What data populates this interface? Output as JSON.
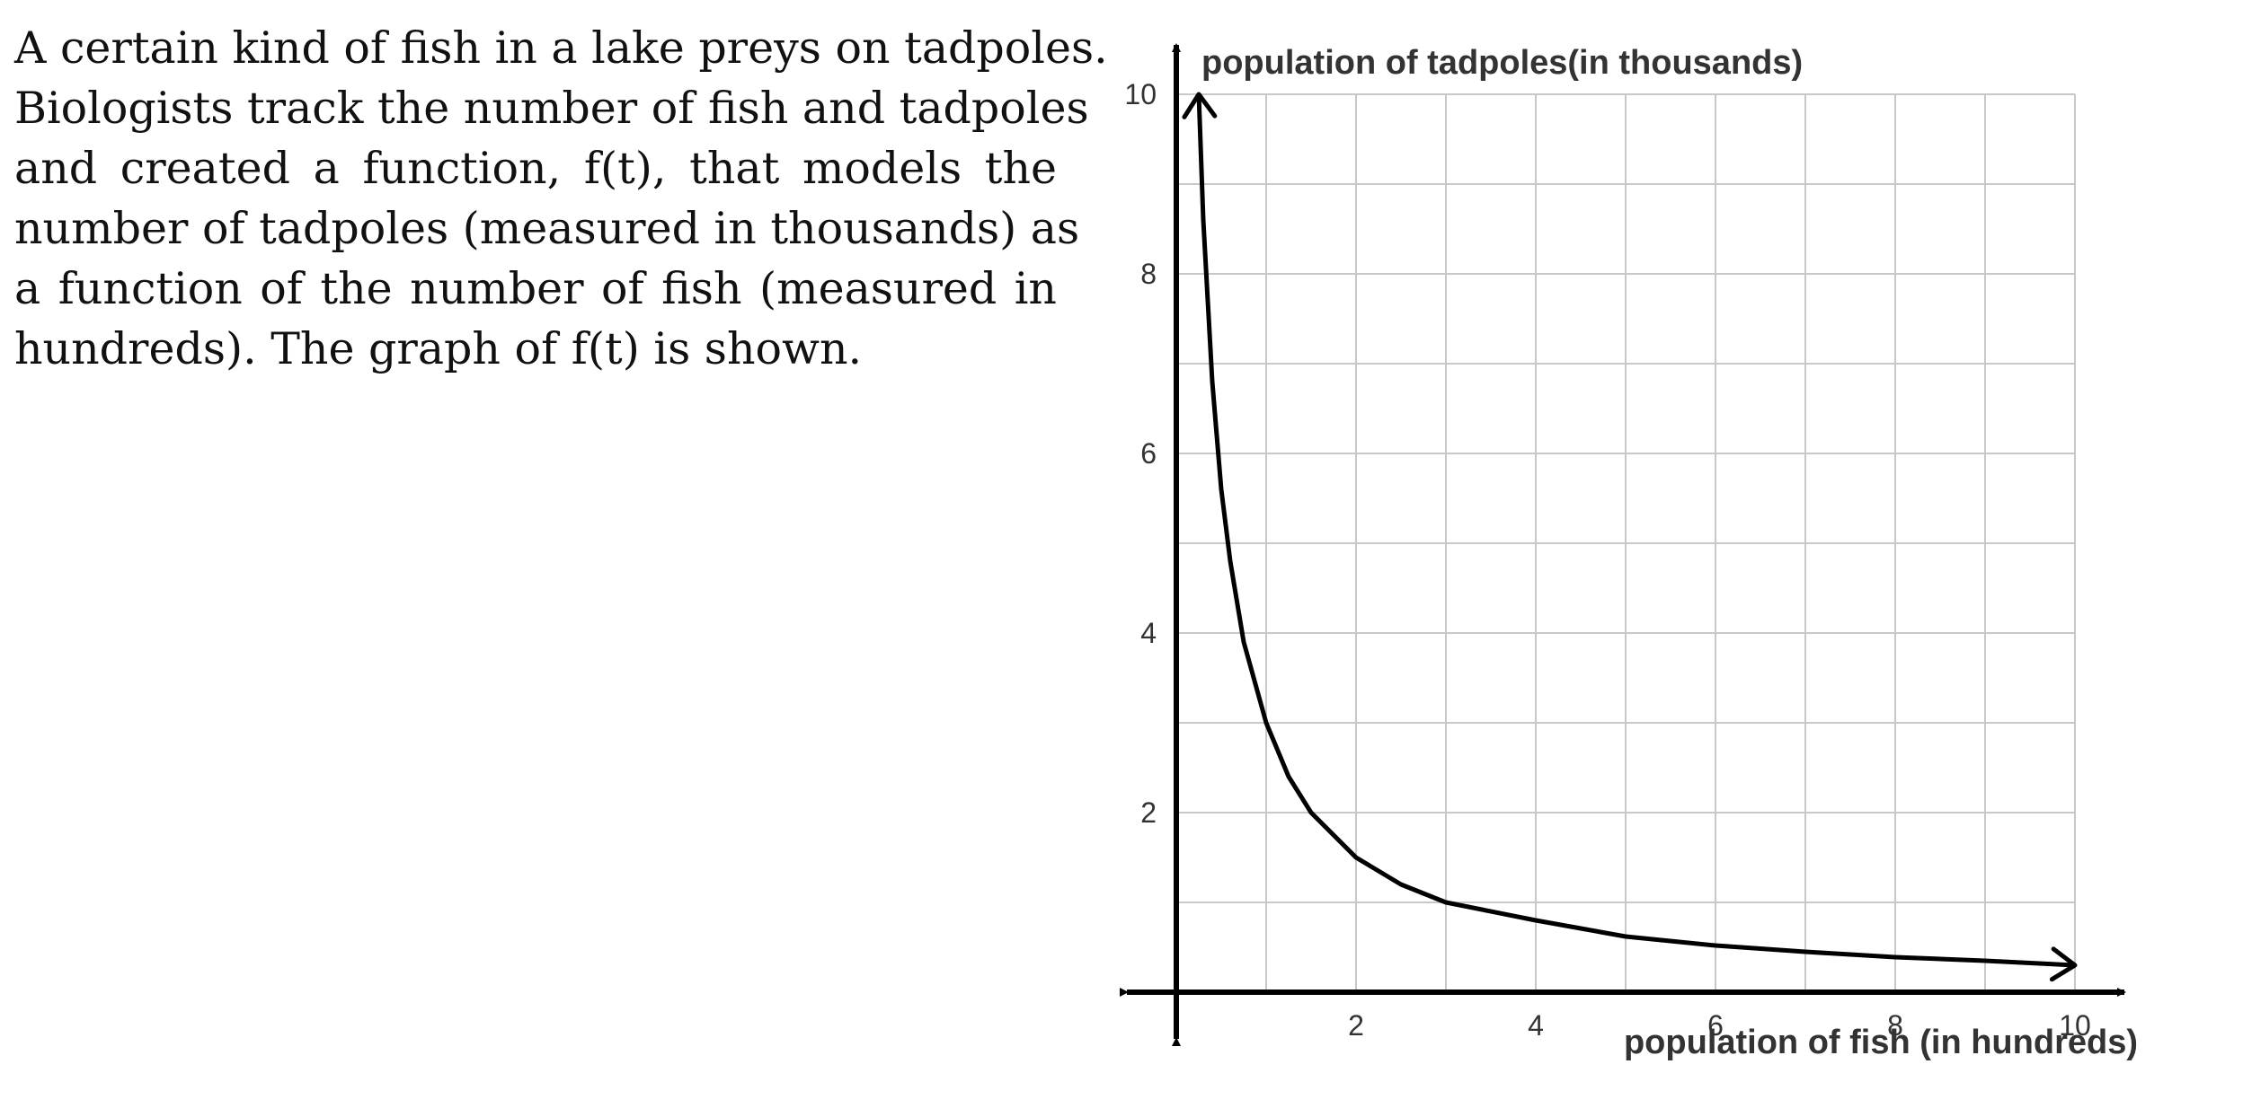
{
  "problem": {
    "lines": [
      "A certain kind of fish in a lake preys on tadpoles.",
      "Biologists track the number of fish and tadpoles",
      "and created a function, f(t), that models the",
      "number of tadpoles (measured in thousands) as",
      "a function of the number of fish (measured in",
      "hundreds). The graph of f(t) is shown."
    ]
  },
  "chart_data": {
    "type": "line",
    "xlabel": "population of fish (in hundreds)",
    "ylabel": "population of tadpoles(in thousands)",
    "xlim": [
      0,
      10
    ],
    "ylim": [
      0,
      10
    ],
    "x_ticks": [
      2,
      4,
      6,
      8,
      10
    ],
    "y_ticks": [
      2,
      4,
      6,
      8,
      10
    ],
    "grid": true,
    "grid_step": 1,
    "series": [
      {
        "x": [
          0.25,
          0.3,
          0.4,
          0.5,
          0.6,
          0.75,
          1,
          1.25,
          1.5,
          2,
          2.5,
          3,
          4,
          5,
          6,
          7,
          8,
          9,
          10
        ],
        "y": [
          10,
          8.6,
          6.8,
          5.6,
          4.8,
          3.9,
          3.0,
          2.4,
          2.0,
          1.5,
          1.2,
          1.0,
          0.8,
          0.62,
          0.52,
          0.45,
          0.39,
          0.35,
          0.3
        ]
      }
    ]
  }
}
